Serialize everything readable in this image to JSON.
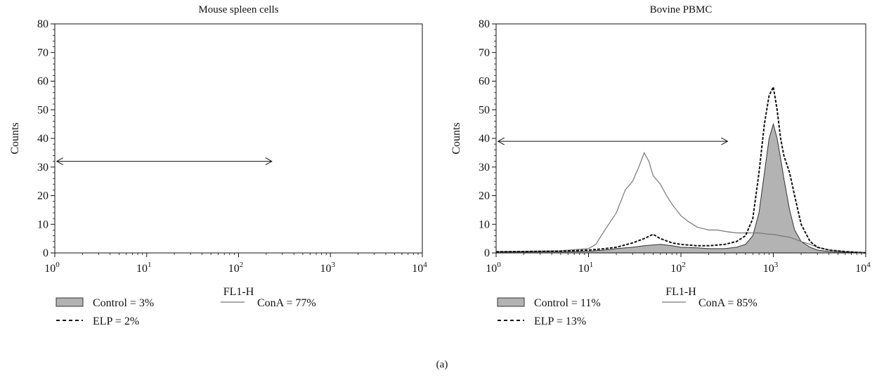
{
  "figure": {
    "panel_label": "(a)"
  },
  "chart_data": [
    {
      "type": "area",
      "title": "Mouse spleen cells",
      "xlabel": "FL1-H",
      "ylabel": "Counts",
      "xscale": "log",
      "xlim": [
        1,
        10000
      ],
      "ylim": [
        0,
        80
      ],
      "yticks": [
        0,
        10,
        20,
        30,
        40,
        50,
        60,
        70,
        80
      ],
      "xticks": [
        {
          "value": 1,
          "base": "10",
          "exp": "0"
        },
        {
          "value": 10,
          "base": "10",
          "exp": "1"
        },
        {
          "value": 100,
          "base": "10",
          "exp": "2"
        },
        {
          "value": 1000,
          "base": "10",
          "exp": "3"
        },
        {
          "value": 10000,
          "base": "10",
          "exp": "4"
        }
      ],
      "gate": {
        "x_start": 1.05,
        "x_end": 230,
        "y": 32
      },
      "series": [],
      "legend": [
        {
          "label": "Control = 3%",
          "style": "filled",
          "color": "#b3b3b3"
        },
        {
          "label": "ConA = 77%",
          "style": "solid",
          "color": "#777777"
        },
        {
          "label": "ELP = 2%",
          "style": "dashed",
          "color": "#111111"
        }
      ]
    },
    {
      "type": "area",
      "title": "Bovine PBMC",
      "xlabel": "FL1-H",
      "ylabel": "Counts",
      "xscale": "log",
      "xlim": [
        1,
        10000
      ],
      "ylim": [
        0,
        80
      ],
      "yticks": [
        0,
        10,
        20,
        30,
        40,
        50,
        60,
        70,
        80
      ],
      "xticks": [
        {
          "value": 1,
          "base": "10",
          "exp": "0"
        },
        {
          "value": 10,
          "base": "10",
          "exp": "1"
        },
        {
          "value": 100,
          "base": "10",
          "exp": "2"
        },
        {
          "value": 1000,
          "base": "10",
          "exp": "3"
        },
        {
          "value": 10000,
          "base": "10",
          "exp": "4"
        }
      ],
      "gate": {
        "x_start": 1.05,
        "x_end": 320,
        "y": 39
      },
      "series": [
        {
          "label": "Control",
          "style": "filled",
          "color": "#b3b3b3",
          "x": [
            1,
            2,
            5,
            10,
            15,
            20,
            30,
            40,
            50,
            60,
            80,
            100,
            150,
            200,
            300,
            400,
            500,
            600,
            700,
            800,
            900,
            1000,
            1100,
            1200,
            1300,
            1500,
            1700,
            2000,
            2500,
            3000,
            4000,
            6000,
            10000
          ],
          "y": [
            0.3,
            0.3,
            0.4,
            0.6,
            1,
            1.5,
            2,
            2.5,
            2.8,
            3,
            2.5,
            2,
            1.8,
            1.5,
            1.5,
            2,
            3,
            6,
            14,
            28,
            40,
            45,
            40,
            33,
            26,
            15,
            8,
            4,
            2,
            1,
            0.5,
            0.2,
            0
          ]
        },
        {
          "label": "ConA",
          "style": "solid",
          "color": "#777777",
          "x": [
            1,
            2,
            5,
            10,
            12,
            15,
            20,
            25,
            30,
            35,
            40,
            45,
            50,
            60,
            70,
            80,
            100,
            120,
            150,
            200,
            250,
            300,
            400,
            500,
            700,
            900,
            1000,
            1200,
            1500,
            2000,
            2500,
            3000,
            4000,
            6000,
            10000
          ],
          "y": [
            0.5,
            0.6,
            0.8,
            1.5,
            3,
            8,
            14,
            22,
            25,
            30,
            35,
            32,
            27,
            24,
            20,
            17,
            13,
            11,
            9,
            8,
            8,
            7.5,
            7,
            7,
            7,
            6.5,
            6.5,
            6,
            5.5,
            4,
            3,
            2,
            1,
            0.5,
            0.2
          ]
        },
        {
          "label": "ELP",
          "style": "dashed",
          "color": "#111111",
          "x": [
            1,
            2,
            5,
            10,
            15,
            20,
            30,
            40,
            50,
            60,
            80,
            100,
            150,
            200,
            300,
            400,
            500,
            600,
            700,
            800,
            900,
            1000,
            1100,
            1200,
            1300,
            1500,
            1700,
            2000,
            2500,
            3000,
            4000,
            6000,
            10000
          ],
          "y": [
            0.4,
            0.5,
            0.6,
            1,
            1.5,
            2,
            3.5,
            5,
            6.5,
            5,
            3.5,
            3,
            2.5,
            2.5,
            3,
            4,
            6,
            12,
            28,
            45,
            55,
            58,
            50,
            40,
            34,
            28,
            20,
            10,
            4,
            2,
            1,
            0.5,
            0
          ]
        }
      ],
      "legend": [
        {
          "label": "Control = 11%",
          "style": "filled",
          "color": "#b3b3b3"
        },
        {
          "label": "ConA = 85%",
          "style": "solid",
          "color": "#777777"
        },
        {
          "label": "ELP = 13%",
          "style": "dashed",
          "color": "#111111"
        }
      ]
    }
  ]
}
